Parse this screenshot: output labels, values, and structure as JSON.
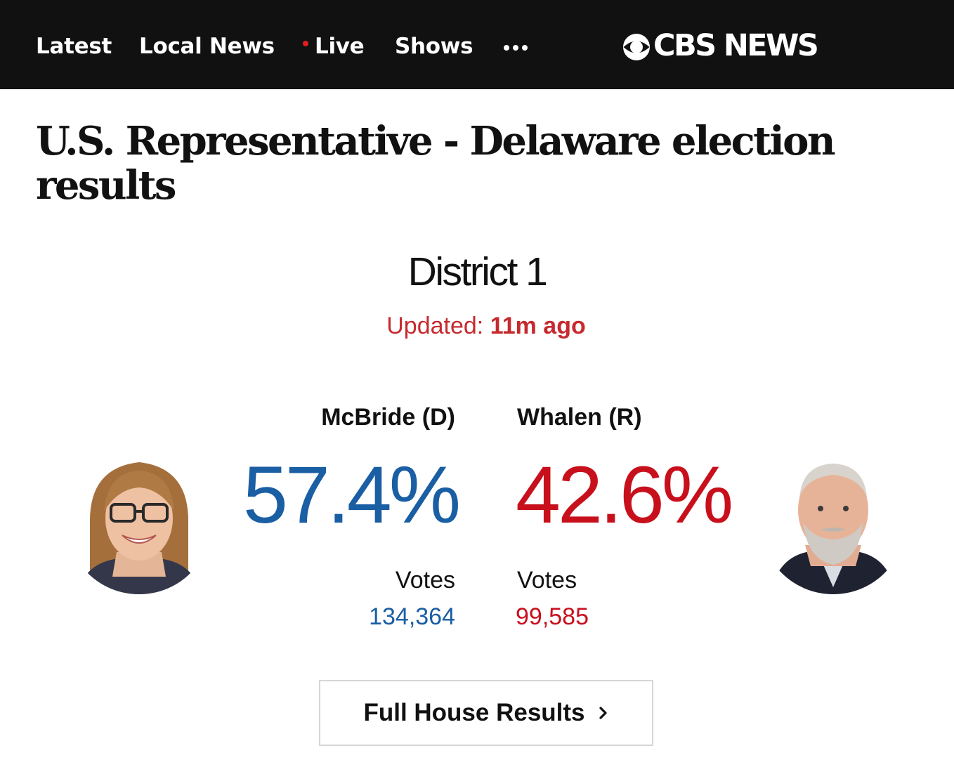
{
  "nav": {
    "items": [
      {
        "label": "Latest"
      },
      {
        "label": "Local News"
      },
      {
        "label": "Live",
        "has_live_dot": true
      },
      {
        "label": "Shows"
      }
    ],
    "more_icon": "more-horizontal-icon",
    "brand": "CBS NEWS",
    "brand_icon": "cbs-eye-icon"
  },
  "page": {
    "title": "U.S. Representative - Delaware election results",
    "district": "District 1",
    "updated_label": "Updated:",
    "updated_value": "11m ago"
  },
  "candidates": [
    {
      "name": "McBride (D)",
      "percent": "57.4%",
      "votes_label": "Votes",
      "votes": "134,364",
      "color": "#1a5ea4",
      "photo_icon": "candidate-photo-mcbride"
    },
    {
      "name": "Whalen (R)",
      "percent": "42.6%",
      "votes_label": "Votes",
      "votes": "99,585",
      "color": "#c8101c",
      "photo_icon": "candidate-photo-whalen"
    }
  ],
  "cta": {
    "label": "Full House Results",
    "icon": "chevron-right-icon"
  },
  "colors": {
    "live_dot": "#e0201f",
    "updated_text": "#c62a2f",
    "header_bg": "#111111"
  }
}
